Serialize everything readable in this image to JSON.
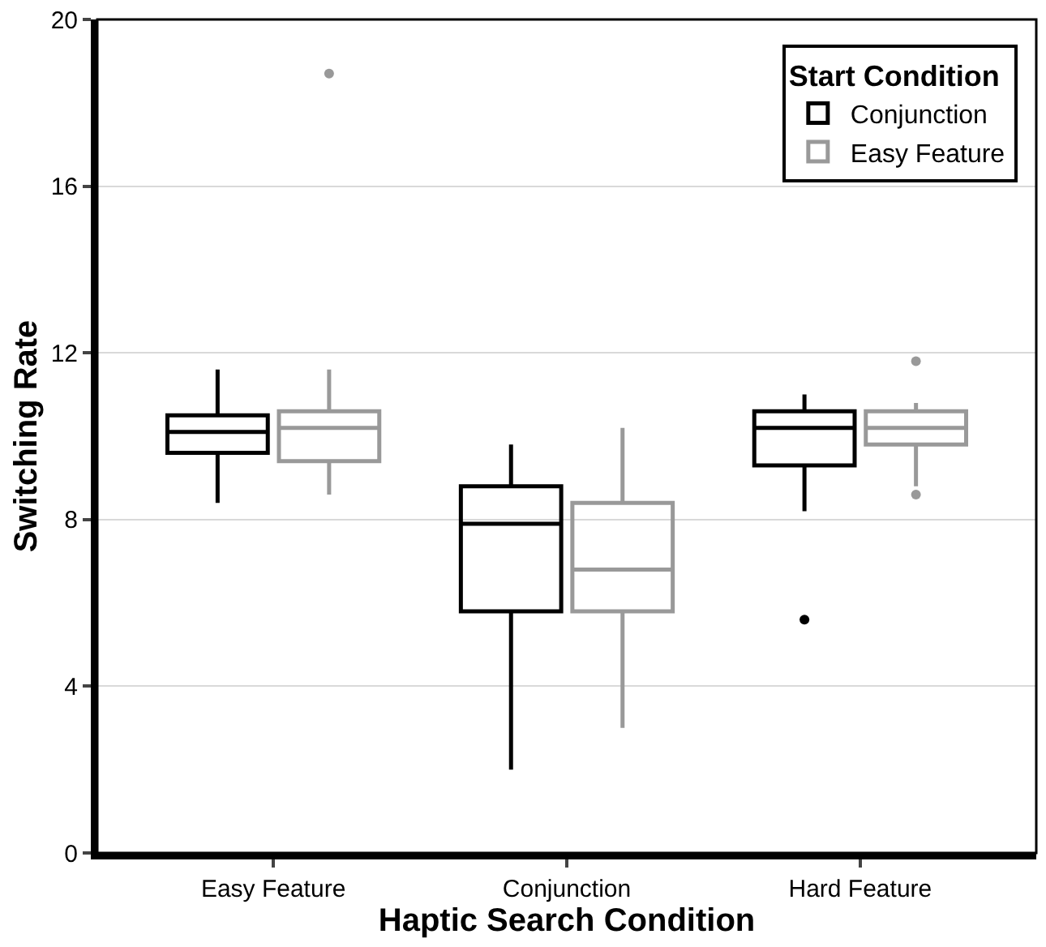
{
  "chart_data": {
    "type": "box",
    "xlabel": "Haptic Search Condition",
    "ylabel": "Switching Rate",
    "legend_title": "Start Condition",
    "categories": [
      "Easy Feature",
      "Conjunction",
      "Hard Feature"
    ],
    "ylim": [
      0,
      20
    ],
    "yticks": [
      0,
      4,
      8,
      12,
      16,
      20
    ],
    "grid": "y",
    "legend": "top right",
    "series": [
      {
        "name": "Conjunction",
        "color": "#000000",
        "boxes": [
          {
            "low": 8.4,
            "q1": 9.6,
            "median": 10.1,
            "q3": 10.5,
            "high": 11.6
          },
          {
            "low": 2.0,
            "q1": 5.8,
            "median": 7.9,
            "q3": 8.8,
            "high": 9.8
          },
          {
            "low": 8.2,
            "q1": 9.3,
            "median": 10.2,
            "q3": 10.6,
            "high": 11.0,
            "outliers": [
              5.6
            ]
          }
        ]
      },
      {
        "name": "Easy Feature",
        "color": "#999999",
        "boxes": [
          {
            "low": 8.6,
            "q1": 9.4,
            "median": 10.2,
            "q3": 10.6,
            "high": 11.6,
            "outliers": [
              18.7
            ]
          },
          {
            "low": 3.0,
            "q1": 5.8,
            "median": 6.8,
            "q3": 8.4,
            "high": 10.2
          },
          {
            "low": 8.8,
            "q1": 9.8,
            "median": 10.2,
            "q3": 10.6,
            "high": 10.8,
            "outliers": [
              11.8,
              8.6
            ]
          }
        ]
      }
    ]
  }
}
